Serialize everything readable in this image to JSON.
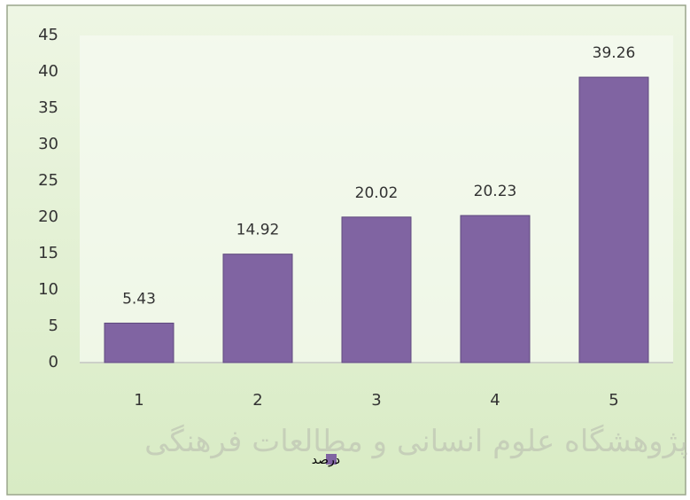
{
  "chart_data": {
    "type": "bar",
    "categories": [
      "1",
      "2",
      "3",
      "4",
      "5"
    ],
    "series": [
      {
        "name": "درصد",
        "color": "#8064a2",
        "values": [
          5.43,
          14.92,
          20.02,
          20.23,
          39.26
        ]
      }
    ],
    "ylim": [
      0,
      45
    ],
    "yticks": [
      0,
      5,
      10,
      15,
      20,
      25,
      30,
      35,
      40,
      45
    ],
    "grid": false,
    "legend": "bottom",
    "watermark": "پژوهشگاه علوم انسانی و مطالعات فرهنگی"
  }
}
